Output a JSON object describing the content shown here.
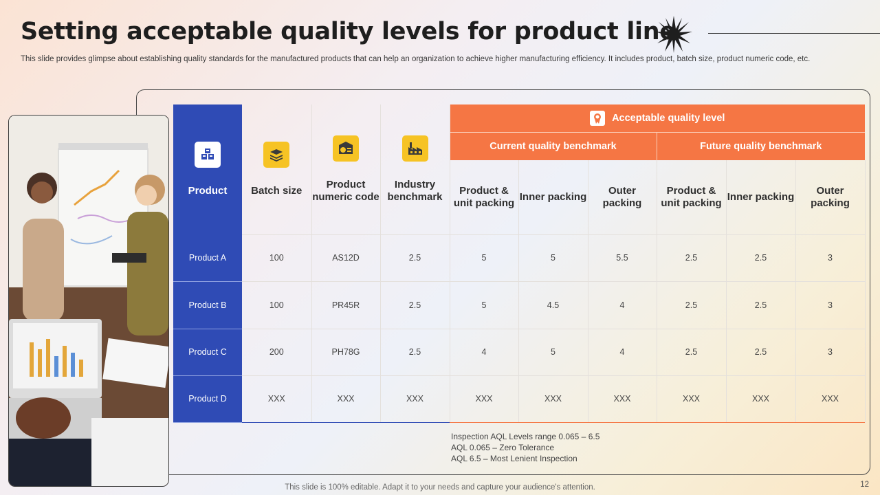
{
  "title": "Setting acceptable quality levels for product line",
  "subtitle": "This slide provides glimpse about establishing quality standards for the manufactured products that can help an organization to achieve higher manufacturing efficiency. It includes product, batch size, product numeric code, etc.",
  "table": {
    "headers": {
      "product": "Product",
      "batch_size": "Batch size",
      "numeric_code": "Product numeric code",
      "industry_benchmark": "Industry benchmark",
      "aql": "Acceptable quality level",
      "current": "Current quality benchmark",
      "future": "Future quality benchmark"
    },
    "subheaders": [
      "Product & unit packing",
      "Inner packing",
      "Outer packing",
      "Product & unit packing",
      "Inner packing",
      "Outer packing"
    ],
    "rows": [
      {
        "product": "Product A",
        "cells": [
          "100",
          "AS12D",
          "2.5",
          "5",
          "5",
          "5.5",
          "2.5",
          "2.5",
          "3"
        ]
      },
      {
        "product": "Product B",
        "cells": [
          "100",
          "PR45R",
          "2.5",
          "5",
          "4.5",
          "4",
          "2.5",
          "2.5",
          "3"
        ]
      },
      {
        "product": "Product C",
        "cells": [
          "200",
          "PH78G",
          "2.5",
          "4",
          "5",
          "4",
          "2.5",
          "2.5",
          "3"
        ]
      },
      {
        "product": "Product D",
        "cells": [
          "XXX",
          "XXX",
          "XXX",
          "XXX",
          "XXX",
          "XXX",
          "XXX",
          "XXX",
          "XXX"
        ]
      }
    ]
  },
  "notes": [
    "Inspection AQL Levels  range  0.065 – 6.5",
    "AQL 0.065  – Zero  Tolerance",
    "AQL 6.5 – Most Lenient Inspection"
  ],
  "footer": "This slide is 100% editable. Adapt it to your needs and capture your audience's attention.",
  "page_number": "12",
  "colors": {
    "blue": "#2f4bb5",
    "orange": "#f57644",
    "yellow": "#f6c324"
  }
}
